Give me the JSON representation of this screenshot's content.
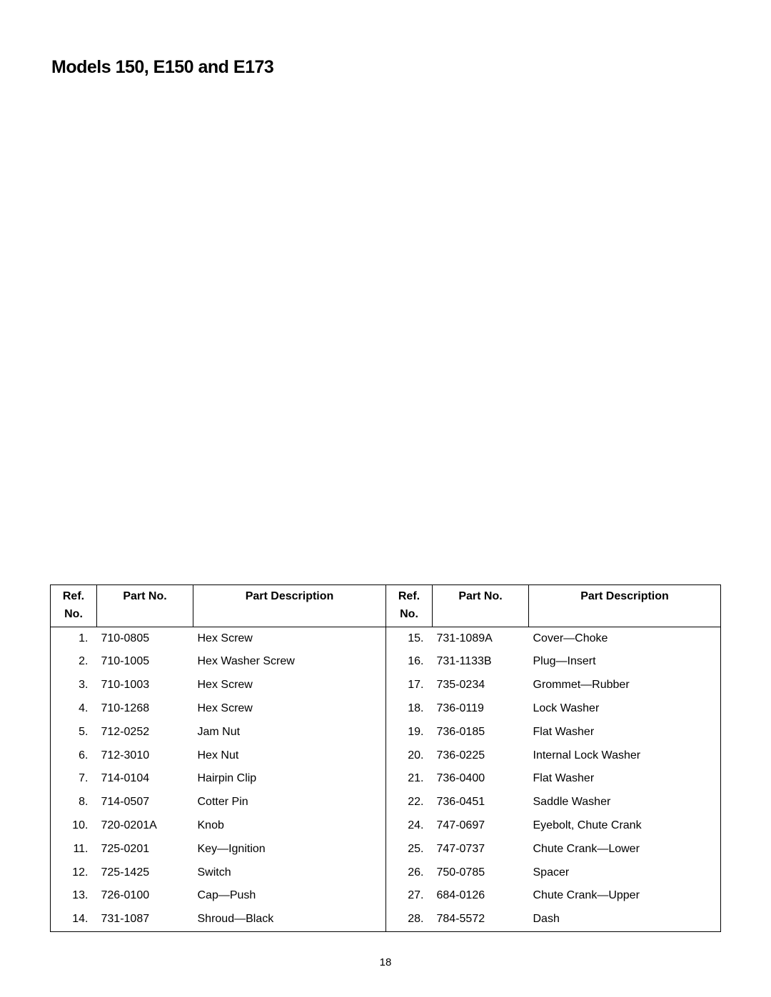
{
  "title": "Models 150, E150 and E173",
  "pageNumber": "18",
  "table": {
    "headers": {
      "ref": "Ref.\nNo.",
      "partNo": "Part No.",
      "partDesc": "Part Description"
    },
    "left": [
      {
        "ref": "1.",
        "partNo": "710-0805",
        "desc": "Hex Screw"
      },
      {
        "ref": "2.",
        "partNo": "710-1005",
        "desc": "Hex Washer Screw"
      },
      {
        "ref": "3.",
        "partNo": "710-1003",
        "desc": "Hex Screw"
      },
      {
        "ref": "4.",
        "partNo": "710-1268",
        "desc": "Hex Screw"
      },
      {
        "ref": "5.",
        "partNo": "712-0252",
        "desc": "Jam Nut"
      },
      {
        "ref": "6.",
        "partNo": "712-3010",
        "desc": "Hex Nut"
      },
      {
        "ref": "7.",
        "partNo": "714-0104",
        "desc": "Hairpin Clip"
      },
      {
        "ref": "8.",
        "partNo": "714-0507",
        "desc": "Cotter Pin"
      },
      {
        "ref": "10.",
        "partNo": "720-0201A",
        "desc": "Knob"
      },
      {
        "ref": "11.",
        "partNo": "725-0201",
        "desc": "Key—Ignition"
      },
      {
        "ref": "12.",
        "partNo": "725-1425",
        "desc": "Switch"
      },
      {
        "ref": "13.",
        "partNo": "726-0100",
        "desc": "Cap—Push"
      },
      {
        "ref": "14.",
        "partNo": "731-1087",
        "desc": "Shroud—Black"
      }
    ],
    "right": [
      {
        "ref": "15.",
        "partNo": "731-1089A",
        "desc": "Cover—Choke"
      },
      {
        "ref": "16.",
        "partNo": "731-1133B",
        "desc": "Plug—Insert"
      },
      {
        "ref": "17.",
        "partNo": "735-0234",
        "desc": "Grommet—Rubber"
      },
      {
        "ref": "18.",
        "partNo": "736-0119",
        "desc": "Lock Washer"
      },
      {
        "ref": "19.",
        "partNo": "736-0185",
        "desc": "Flat Washer"
      },
      {
        "ref": "20.",
        "partNo": "736-0225",
        "desc": "Internal Lock Washer"
      },
      {
        "ref": "21.",
        "partNo": "736-0400",
        "desc": "Flat Washer"
      },
      {
        "ref": "22.",
        "partNo": "736-0451",
        "desc": "Saddle Washer"
      },
      {
        "ref": "24.",
        "partNo": "747-0697",
        "desc": "Eyebolt, Chute Crank"
      },
      {
        "ref": "25.",
        "partNo": "747-0737",
        "desc": "Chute Crank—Lower"
      },
      {
        "ref": "26.",
        "partNo": "750-0785",
        "desc": "Spacer"
      },
      {
        "ref": "27.",
        "partNo": "684-0126",
        "desc": "Chute Crank—Upper"
      },
      {
        "ref": "28.",
        "partNo": "784-5572",
        "desc": "Dash"
      }
    ]
  }
}
